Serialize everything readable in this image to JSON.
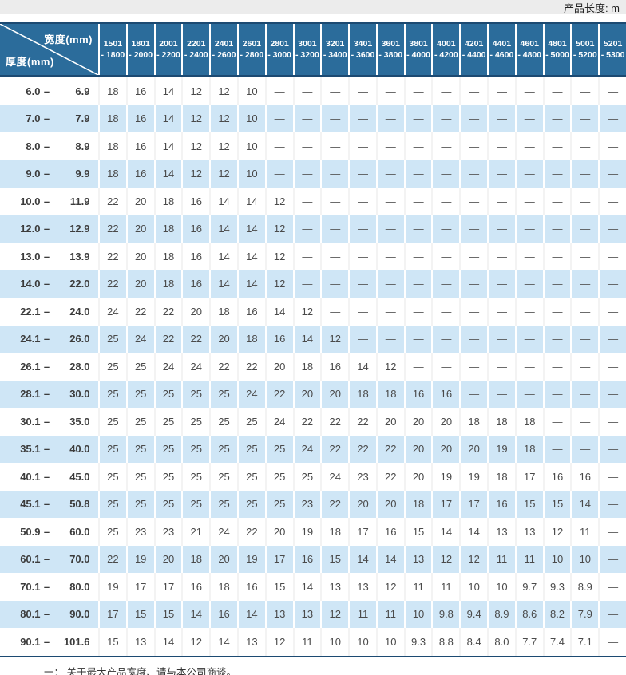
{
  "page": {
    "unit_label": "产品长度: m",
    "footnote": "一： 关于最大产品宽度、请与本公司商谈。"
  },
  "table": {
    "corner": {
      "top": "宽度(mm)",
      "bottom": "厚度(mm)"
    },
    "row_dash": "–",
    "columns": [
      {
        "line1": "1501",
        "line2": "- 1800"
      },
      {
        "line1": "1801",
        "line2": "- 2000"
      },
      {
        "line1": "2001",
        "line2": "- 2200"
      },
      {
        "line1": "2201",
        "line2": "- 2400"
      },
      {
        "line1": "2401",
        "line2": "- 2600"
      },
      {
        "line1": "2601",
        "line2": "- 2800"
      },
      {
        "line1": "2801",
        "line2": "- 3000"
      },
      {
        "line1": "3001",
        "line2": "- 3200"
      },
      {
        "line1": "3201",
        "line2": "- 3400"
      },
      {
        "line1": "3401",
        "line2": "- 3600"
      },
      {
        "line1": "3601",
        "line2": "- 3800"
      },
      {
        "line1": "3801",
        "line2": "- 4000"
      },
      {
        "line1": "4001",
        "line2": "- 4200"
      },
      {
        "line1": "4201",
        "line2": "- 4400"
      },
      {
        "line1": "4401",
        "line2": "- 4600"
      },
      {
        "line1": "4601",
        "line2": "- 4800"
      },
      {
        "line1": "4801",
        "line2": "- 5000"
      },
      {
        "line1": "5001",
        "line2": "- 5200"
      },
      {
        "line1": "5201",
        "line2": "- 5300"
      }
    ],
    "rows": [
      {
        "from": "6.0",
        "to": "6.9",
        "values": [
          "18",
          "16",
          "14",
          "12",
          "12",
          "10",
          "—",
          "—",
          "—",
          "—",
          "—",
          "—",
          "—",
          "—",
          "—",
          "—",
          "—",
          "—",
          "—"
        ]
      },
      {
        "from": "7.0",
        "to": "7.9",
        "values": [
          "18",
          "16",
          "14",
          "12",
          "12",
          "10",
          "—",
          "—",
          "—",
          "—",
          "—",
          "—",
          "—",
          "—",
          "—",
          "—",
          "—",
          "—",
          "—"
        ]
      },
      {
        "from": "8.0",
        "to": "8.9",
        "values": [
          "18",
          "16",
          "14",
          "12",
          "12",
          "10",
          "—",
          "—",
          "—",
          "—",
          "—",
          "—",
          "—",
          "—",
          "—",
          "—",
          "—",
          "—",
          "—"
        ]
      },
      {
        "from": "9.0",
        "to": "9.9",
        "values": [
          "18",
          "16",
          "14",
          "12",
          "12",
          "10",
          "—",
          "—",
          "—",
          "—",
          "—",
          "—",
          "—",
          "—",
          "—",
          "—",
          "—",
          "—",
          "—"
        ]
      },
      {
        "from": "10.0",
        "to": "11.9",
        "values": [
          "22",
          "20",
          "18",
          "16",
          "14",
          "14",
          "12",
          "—",
          "—",
          "—",
          "—",
          "—",
          "—",
          "—",
          "—",
          "—",
          "—",
          "—",
          "—"
        ]
      },
      {
        "from": "12.0",
        "to": "12.9",
        "values": [
          "22",
          "20",
          "18",
          "16",
          "14",
          "14",
          "12",
          "—",
          "—",
          "—",
          "—",
          "—",
          "—",
          "—",
          "—",
          "—",
          "—",
          "—",
          "—"
        ]
      },
      {
        "from": "13.0",
        "to": "13.9",
        "values": [
          "22",
          "20",
          "18",
          "16",
          "14",
          "14",
          "12",
          "—",
          "—",
          "—",
          "—",
          "—",
          "—",
          "—",
          "—",
          "—",
          "—",
          "—",
          "—"
        ]
      },
      {
        "from": "14.0",
        "to": "22.0",
        "values": [
          "22",
          "20",
          "18",
          "16",
          "14",
          "14",
          "12",
          "—",
          "—",
          "—",
          "—",
          "—",
          "—",
          "—",
          "—",
          "—",
          "—",
          "—",
          "—"
        ]
      },
      {
        "from": "22.1",
        "to": "24.0",
        "values": [
          "24",
          "22",
          "22",
          "20",
          "18",
          "16",
          "14",
          "12",
          "—",
          "—",
          "—",
          "—",
          "—",
          "—",
          "—",
          "—",
          "—",
          "—",
          "—"
        ]
      },
      {
        "from": "24.1",
        "to": "26.0",
        "values": [
          "25",
          "24",
          "22",
          "22",
          "20",
          "18",
          "16",
          "14",
          "12",
          "—",
          "—",
          "—",
          "—",
          "—",
          "—",
          "—",
          "—",
          "—",
          "—"
        ]
      },
      {
        "from": "26.1",
        "to": "28.0",
        "values": [
          "25",
          "25",
          "24",
          "24",
          "22",
          "22",
          "20",
          "18",
          "16",
          "14",
          "12",
          "—",
          "—",
          "—",
          "—",
          "—",
          "—",
          "—",
          "—"
        ]
      },
      {
        "from": "28.1",
        "to": "30.0",
        "values": [
          "25",
          "25",
          "25",
          "25",
          "25",
          "24",
          "22",
          "20",
          "20",
          "18",
          "18",
          "16",
          "16",
          "—",
          "—",
          "—",
          "—",
          "—",
          "—"
        ]
      },
      {
        "from": "30.1",
        "to": "35.0",
        "values": [
          "25",
          "25",
          "25",
          "25",
          "25",
          "25",
          "24",
          "22",
          "22",
          "22",
          "20",
          "20",
          "20",
          "18",
          "18",
          "18",
          "—",
          "—",
          "—"
        ]
      },
      {
        "from": "35.1",
        "to": "40.0",
        "values": [
          "25",
          "25",
          "25",
          "25",
          "25",
          "25",
          "25",
          "24",
          "22",
          "22",
          "22",
          "20",
          "20",
          "20",
          "19",
          "18",
          "—",
          "—",
          "—"
        ]
      },
      {
        "from": "40.1",
        "to": "45.0",
        "values": [
          "25",
          "25",
          "25",
          "25",
          "25",
          "25",
          "25",
          "25",
          "24",
          "23",
          "22",
          "20",
          "19",
          "19",
          "18",
          "17",
          "16",
          "16",
          "—"
        ]
      },
      {
        "from": "45.1",
        "to": "50.8",
        "values": [
          "25",
          "25",
          "25",
          "25",
          "25",
          "25",
          "25",
          "23",
          "22",
          "20",
          "20",
          "18",
          "17",
          "17",
          "16",
          "15",
          "15",
          "14",
          "—"
        ]
      },
      {
        "from": "50.9",
        "to": "60.0",
        "values": [
          "25",
          "23",
          "23",
          "21",
          "24",
          "22",
          "20",
          "19",
          "18",
          "17",
          "16",
          "15",
          "14",
          "14",
          "13",
          "13",
          "12",
          "11",
          "—"
        ]
      },
      {
        "from": "60.1",
        "to": "70.0",
        "values": [
          "22",
          "19",
          "20",
          "18",
          "20",
          "19",
          "17",
          "16",
          "15",
          "14",
          "14",
          "13",
          "12",
          "12",
          "11",
          "11",
          "10",
          "10",
          "—"
        ]
      },
      {
        "from": "70.1",
        "to": "80.0",
        "values": [
          "19",
          "17",
          "17",
          "16",
          "18",
          "16",
          "15",
          "14",
          "13",
          "13",
          "12",
          "11",
          "11",
          "10",
          "10",
          "9.7",
          "9.3",
          "8.9",
          "—"
        ]
      },
      {
        "from": "80.1",
        "to": "90.0",
        "values": [
          "17",
          "15",
          "15",
          "14",
          "16",
          "14",
          "13",
          "13",
          "12",
          "11",
          "11",
          "10",
          "9.8",
          "9.4",
          "8.9",
          "8.6",
          "8.2",
          "7.9",
          "—"
        ]
      },
      {
        "from": "90.1",
        "to": "101.6",
        "values": [
          "15",
          "13",
          "14",
          "12",
          "14",
          "13",
          "12",
          "11",
          "10",
          "10",
          "10",
          "9.3",
          "8.8",
          "8.4",
          "8.0",
          "7.7",
          "7.4",
          "7.1",
          "—"
        ]
      }
    ]
  },
  "colors": {
    "header_bg": "#2b6c9b",
    "header_border": "#1c4a72",
    "alt_row_bg": "#cfe6f6",
    "cell_text": "#4a4a4a"
  }
}
